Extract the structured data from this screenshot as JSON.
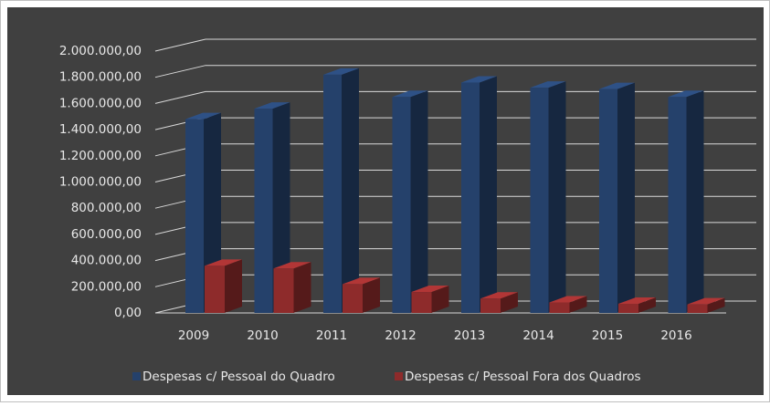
{
  "chart_data": {
    "type": "bar3d",
    "categories": [
      "2009",
      "2010",
      "2011",
      "2012",
      "2013",
      "2014",
      "2015",
      "2016"
    ],
    "series": [
      {
        "name": "Despesas c/ Pessoal do Quadro",
        "color": "#25416b",
        "values": [
          1480000,
          1560000,
          1820000,
          1650000,
          1760000,
          1720000,
          1710000,
          1650000
        ]
      },
      {
        "name": "Despesas c/ Pessoal Fora dos Quadros",
        "color": "#8e2b2b",
        "values": [
          360000,
          340000,
          220000,
          160000,
          110000,
          80000,
          70000,
          65000
        ]
      }
    ],
    "ylim": [
      0,
      2000000
    ],
    "yticks": [
      {
        "value": 0,
        "label": "0,00"
      },
      {
        "value": 200000,
        "label": "200.000,00"
      },
      {
        "value": 400000,
        "label": "400.000,00"
      },
      {
        "value": 600000,
        "label": "600.000,00"
      },
      {
        "value": 800000,
        "label": "800.000,00"
      },
      {
        "value": 1000000,
        "label": "1.000.000,00"
      },
      {
        "value": 1200000,
        "label": "1.200.000,00"
      },
      {
        "value": 1400000,
        "label": "1.400.000,00"
      },
      {
        "value": 1600000,
        "label": "1.600.000,00"
      },
      {
        "value": 1800000,
        "label": "1.800.000,00"
      },
      {
        "value": 2000000,
        "label": "2.000.000,00"
      }
    ],
    "grid": true,
    "legend": "bottom"
  }
}
